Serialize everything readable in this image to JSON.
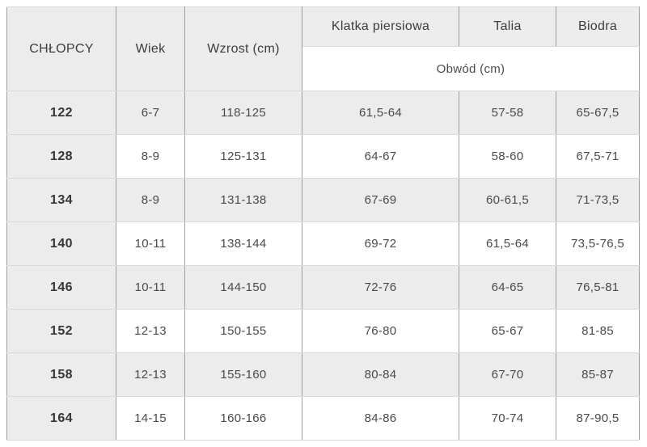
{
  "colors": {
    "header_bg": "#ececec",
    "row_stripe_bg": "#ececec",
    "row_bg": "#ffffff",
    "border_vertical": "#9e9e9e",
    "border_horizontal": "#d9d9d9",
    "text": "#4a4a4a",
    "text_strong": "#363636"
  },
  "chart_data": {
    "type": "table",
    "title": "CHŁOPCY",
    "columns": [
      "CHŁOPCY",
      "Wiek",
      "Wzrost (cm)",
      "Klatka piersiowa",
      "Talia",
      "Biodra"
    ],
    "subheader": {
      "label": "Obwód (cm)",
      "spans_columns": [
        "Klatka piersiowa",
        "Talia",
        "Biodra"
      ]
    },
    "rows": [
      [
        "122",
        "6-7",
        "118-125",
        "61,5-64",
        "57-58",
        "65-67,5"
      ],
      [
        "128",
        "8-9",
        "125-131",
        "64-67",
        "58-60",
        "67,5-71"
      ],
      [
        "134",
        "8-9",
        "131-138",
        "67-69",
        "60-61,5",
        "71-73,5"
      ],
      [
        "140",
        "10-11",
        "138-144",
        "69-72",
        "61,5-64",
        "73,5-76,5"
      ],
      [
        "146",
        "10-11",
        "144-150",
        "72-76",
        "64-65",
        "76,5-81"
      ],
      [
        "152",
        "12-13",
        "150-155",
        "76-80",
        "65-67",
        "81-85"
      ],
      [
        "158",
        "12-13",
        "155-160",
        "80-84",
        "67-70",
        "85-87"
      ],
      [
        "164",
        "14-15",
        "160-166",
        "84-86",
        "70-74",
        "87-90,5"
      ]
    ],
    "cell_names": [
      "size-cell",
      "age-cell",
      "height-cell",
      "chest-cell",
      "waist-cell",
      "hips-cell"
    ]
  }
}
